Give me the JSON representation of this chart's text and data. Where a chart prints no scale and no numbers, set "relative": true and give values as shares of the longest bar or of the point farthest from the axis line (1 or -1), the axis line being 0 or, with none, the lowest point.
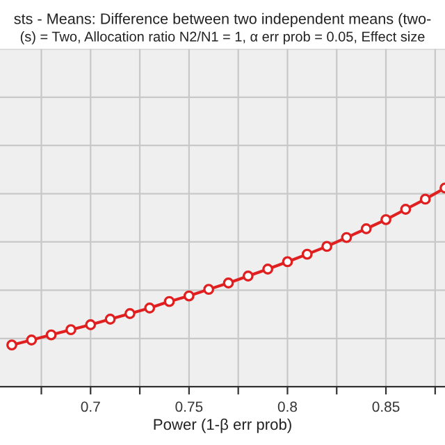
{
  "chart_data": {
    "type": "line",
    "title": "sts - Means: Difference between two independent means (two-",
    "subtitle": "(s) = Two, Allocation ratio N2/N1 = 1, α err prob = 0.05, Effect size",
    "xlabel": "Power (1-β err prob)",
    "relative": true,
    "x": [
      0.66,
      0.67,
      0.68,
      0.69,
      0.7,
      0.71,
      0.72,
      0.73,
      0.74,
      0.75,
      0.76,
      0.77,
      0.78,
      0.79,
      0.8,
      0.81,
      0.82,
      0.83,
      0.84,
      0.85,
      0.86,
      0.87,
      0.88
    ],
    "series": [
      {
        "color": "#e02020",
        "values": [
          0.21,
          0.235,
          0.261,
          0.287,
          0.312,
          0.34,
          0.368,
          0.396,
          0.429,
          0.457,
          0.49,
          0.522,
          0.557,
          0.592,
          0.629,
          0.667,
          0.706,
          0.751,
          0.795,
          0.841,
          0.893,
          0.944,
          1.0
        ]
      }
    ],
    "xlim": [
      0.654,
      0.88
    ],
    "xticks": [
      {
        "value": 0.675,
        "label": null
      },
      0.7,
      {
        "value": 0.725,
        "label": null
      },
      0.75,
      {
        "value": 0.775,
        "label": null
      },
      0.8,
      {
        "value": 0.825,
        "label": null
      },
      0.85,
      {
        "value": 0.875,
        "label": null
      }
    ],
    "grid": true,
    "marker": "circle",
    "line_style": "solid",
    "legend": false
  }
}
